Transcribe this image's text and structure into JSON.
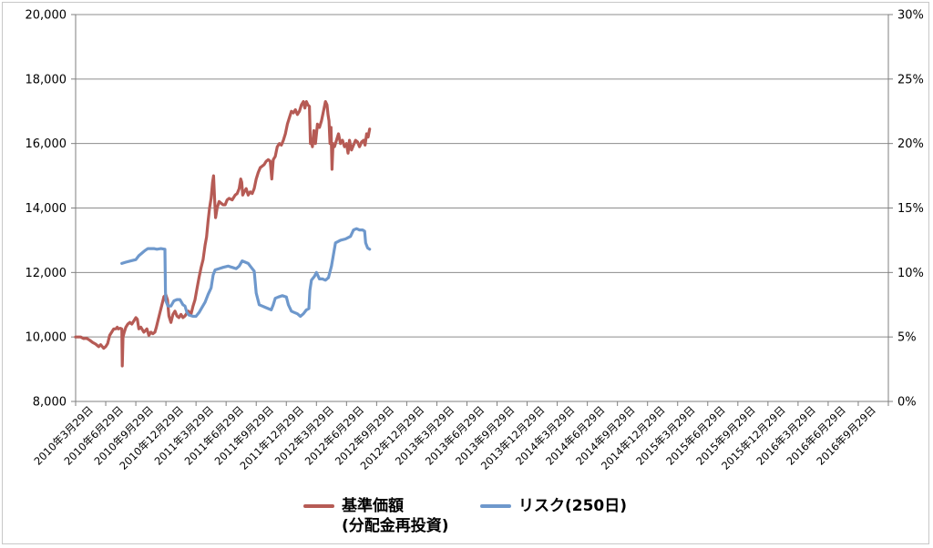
{
  "chart_data": {
    "type": "line",
    "title": "",
    "y_left": {
      "ticks": [
        "8,000",
        "10,000",
        "12,000",
        "14,000",
        "16,000",
        "18,000",
        "20,000"
      ],
      "range": [
        8000,
        20000
      ]
    },
    "y_right": {
      "ticks": [
        "0%",
        "5%",
        "10%",
        "15%",
        "20%",
        "25%",
        "30%"
      ],
      "range": [
        0,
        30
      ]
    },
    "categories": [
      "2010年3月29日",
      "2010年6月29日",
      "2010年9月29日",
      "2010年12月29日",
      "2011年3月29日",
      "2011年6月29日",
      "2011年9月29日",
      "2011年12月29日",
      "2012年3月29日",
      "2012年6月29日",
      "2012年9月29日",
      "2012年12月29日",
      "2013年3月29日",
      "2013年6月29日",
      "2013年9月29日",
      "2013年12月29日",
      "2014年3月29日",
      "2014年6月29日",
      "2014年9月29日",
      "2014年12月29日",
      "2015年3月29日",
      "2015年6月29日",
      "2015年9月29日",
      "2015年12月29日",
      "2016年3月29日",
      "2016年6月29日",
      "2016年9月29日"
    ],
    "grid": true,
    "legend_position": "bottom",
    "series": [
      {
        "name": "基準価額\n(分配金再投資)",
        "axis": "left",
        "color": "#b65b55",
        "points": [
          [
            0,
            10000
          ],
          [
            0.5,
            10000
          ],
          [
            0.8,
            9950
          ],
          [
            1.1,
            9960
          ],
          [
            1.4,
            9900
          ],
          [
            1.7,
            9830
          ],
          [
            2.0,
            9780
          ],
          [
            2.3,
            9700
          ],
          [
            2.5,
            9760
          ],
          [
            2.8,
            9650
          ],
          [
            3.0,
            9700
          ],
          [
            3.2,
            9800
          ],
          [
            3.4,
            10050
          ],
          [
            3.6,
            10150
          ],
          [
            3.8,
            10250
          ],
          [
            4.0,
            10250
          ],
          [
            4.15,
            10300
          ],
          [
            4.25,
            10250
          ],
          [
            4.45,
            10270
          ],
          [
            4.6,
            10250
          ],
          [
            4.65,
            9100
          ],
          [
            4.72,
            10000
          ],
          [
            4.85,
            10150
          ],
          [
            5.0,
            10300
          ],
          [
            5.2,
            10400
          ],
          [
            5.4,
            10450
          ],
          [
            5.6,
            10400
          ],
          [
            5.8,
            10500
          ],
          [
            6.0,
            10600
          ],
          [
            6.15,
            10550
          ],
          [
            6.3,
            10250
          ],
          [
            6.5,
            10300
          ],
          [
            6.8,
            10150
          ],
          [
            7.1,
            10250
          ],
          [
            7.3,
            10050
          ],
          [
            7.5,
            10150
          ],
          [
            7.7,
            10100
          ],
          [
            7.9,
            10150
          ],
          [
            8.05,
            10300
          ],
          [
            8.2,
            10500
          ],
          [
            8.4,
            10750
          ],
          [
            8.6,
            11000
          ],
          [
            8.8,
            11250
          ],
          [
            9.0,
            11300
          ],
          [
            9.15,
            11150
          ],
          [
            9.3,
            10650
          ],
          [
            9.5,
            10450
          ],
          [
            9.7,
            10700
          ],
          [
            9.9,
            10800
          ],
          [
            10.1,
            10650
          ],
          [
            10.3,
            10600
          ],
          [
            10.5,
            10700
          ],
          [
            10.7,
            10600
          ],
          [
            10.9,
            10650
          ],
          [
            11.1,
            10750
          ],
          [
            11.25,
            10800
          ],
          [
            11.35,
            10750
          ],
          [
            11.5,
            10700
          ],
          [
            11.7,
            10950
          ],
          [
            11.9,
            11150
          ],
          [
            12.1,
            11500
          ],
          [
            12.3,
            11850
          ],
          [
            12.5,
            12150
          ],
          [
            12.7,
            12400
          ],
          [
            12.9,
            12850
          ],
          [
            13.05,
            13100
          ],
          [
            13.2,
            13600
          ],
          [
            13.35,
            14000
          ],
          [
            13.5,
            14300
          ],
          [
            13.65,
            14800
          ],
          [
            13.75,
            15000
          ],
          [
            13.85,
            14300
          ],
          [
            13.95,
            13700
          ],
          [
            14.1,
            14000
          ],
          [
            14.3,
            14200
          ],
          [
            14.5,
            14150
          ],
          [
            14.7,
            14100
          ],
          [
            14.9,
            14100
          ],
          [
            15.1,
            14250
          ],
          [
            15.3,
            14300
          ],
          [
            15.6,
            14250
          ],
          [
            15.9,
            14400
          ],
          [
            16.1,
            14450
          ],
          [
            16.3,
            14600
          ],
          [
            16.45,
            14900
          ],
          [
            16.55,
            14800
          ],
          [
            16.65,
            14400
          ],
          [
            16.8,
            14500
          ],
          [
            17.0,
            14600
          ],
          [
            17.2,
            14400
          ],
          [
            17.4,
            14500
          ],
          [
            17.6,
            14450
          ],
          [
            17.8,
            14600
          ],
          [
            18.0,
            14900
          ],
          [
            18.2,
            15100
          ],
          [
            18.4,
            15250
          ],
          [
            18.6,
            15300
          ],
          [
            18.8,
            15350
          ],
          [
            19.0,
            15450
          ],
          [
            19.2,
            15500
          ],
          [
            19.4,
            15450
          ],
          [
            19.55,
            14900
          ],
          [
            19.7,
            15500
          ],
          [
            19.9,
            15600
          ],
          [
            20.1,
            15900
          ],
          [
            20.3,
            16000
          ],
          [
            20.5,
            15950
          ],
          [
            20.7,
            16100
          ],
          [
            20.9,
            16300
          ],
          [
            21.1,
            16600
          ],
          [
            21.3,
            16800
          ],
          [
            21.5,
            17000
          ],
          [
            21.7,
            16950
          ],
          [
            21.9,
            17050
          ],
          [
            22.1,
            16900
          ],
          [
            22.3,
            17000
          ],
          [
            22.5,
            17200
          ],
          [
            22.7,
            17300
          ],
          [
            22.85,
            17100
          ],
          [
            23.0,
            17300
          ],
          [
            23.15,
            17200
          ],
          [
            23.3,
            17150
          ],
          [
            23.4,
            16000
          ],
          [
            23.5,
            16100
          ],
          [
            23.6,
            15900
          ],
          [
            23.75,
            16400
          ],
          [
            23.9,
            16000
          ],
          [
            24.1,
            16600
          ],
          [
            24.3,
            16500
          ],
          [
            24.5,
            16700
          ],
          [
            24.7,
            17000
          ],
          [
            24.9,
            17300
          ],
          [
            25.05,
            17200
          ],
          [
            25.15,
            16900
          ],
          [
            25.25,
            16700
          ],
          [
            25.35,
            16000
          ],
          [
            25.45,
            16500
          ],
          [
            25.55,
            15200
          ],
          [
            25.65,
            16000
          ],
          [
            25.8,
            15900
          ],
          [
            26.0,
            16100
          ],
          [
            26.2,
            16300
          ],
          [
            26.4,
            16000
          ],
          [
            26.6,
            16100
          ],
          [
            26.8,
            15900
          ],
          [
            27.0,
            16000
          ],
          [
            27.15,
            15700
          ],
          [
            27.3,
            16100
          ],
          [
            27.5,
            15800
          ],
          [
            27.7,
            15950
          ],
          [
            27.9,
            16100
          ],
          [
            28.1,
            16050
          ],
          [
            28.3,
            15900
          ],
          [
            28.5,
            16050
          ],
          [
            28.7,
            16100
          ],
          [
            28.85,
            15950
          ],
          [
            29.0,
            16300
          ],
          [
            29.15,
            16200
          ],
          [
            29.3,
            16450
          ]
        ]
      },
      {
        "name": "リスク(250日)",
        "axis": "right",
        "color": "#6e98cc",
        "points": [
          [
            4.6,
            10.7
          ],
          [
            5.0,
            10.8
          ],
          [
            5.5,
            10.9
          ],
          [
            6.0,
            11.0
          ],
          [
            6.3,
            11.3
          ],
          [
            6.6,
            11.5
          ],
          [
            6.9,
            11.7
          ],
          [
            7.2,
            11.85
          ],
          [
            7.8,
            11.85
          ],
          [
            8.1,
            11.8
          ],
          [
            8.5,
            11.85
          ],
          [
            8.9,
            11.8
          ],
          [
            8.95,
            8.5
          ],
          [
            9.0,
            7.8
          ],
          [
            9.2,
            7.4
          ],
          [
            9.5,
            7.4
          ],
          [
            9.8,
            7.8
          ],
          [
            10.1,
            7.9
          ],
          [
            10.4,
            7.9
          ],
          [
            10.7,
            7.5
          ],
          [
            10.9,
            7.4
          ],
          [
            11.1,
            6.9
          ],
          [
            11.3,
            6.7
          ],
          [
            11.7,
            6.6
          ],
          [
            12.0,
            6.6
          ],
          [
            12.3,
            6.9
          ],
          [
            12.6,
            7.3
          ],
          [
            12.9,
            7.7
          ],
          [
            13.2,
            8.3
          ],
          [
            13.5,
            8.8
          ],
          [
            13.7,
            9.8
          ],
          [
            13.9,
            10.2
          ],
          [
            14.3,
            10.3
          ],
          [
            14.7,
            10.4
          ],
          [
            15.2,
            10.5
          ],
          [
            15.6,
            10.4
          ],
          [
            16.0,
            10.3
          ],
          [
            16.3,
            10.5
          ],
          [
            16.6,
            10.9
          ],
          [
            16.9,
            10.8
          ],
          [
            17.2,
            10.7
          ],
          [
            17.5,
            10.4
          ],
          [
            17.8,
            10.1
          ],
          [
            18.0,
            8.4
          ],
          [
            18.3,
            7.5
          ],
          [
            18.6,
            7.4
          ],
          [
            18.9,
            7.3
          ],
          [
            19.2,
            7.2
          ],
          [
            19.5,
            7.1
          ],
          [
            19.7,
            7.5
          ],
          [
            19.9,
            8.0
          ],
          [
            20.2,
            8.1
          ],
          [
            20.6,
            8.2
          ],
          [
            21.0,
            8.1
          ],
          [
            21.2,
            7.5
          ],
          [
            21.5,
            7.0
          ],
          [
            21.8,
            6.9
          ],
          [
            22.1,
            6.8
          ],
          [
            22.4,
            6.6
          ],
          [
            22.7,
            6.8
          ],
          [
            23.0,
            7.1
          ],
          [
            23.25,
            7.2
          ],
          [
            23.35,
            8.6
          ],
          [
            23.5,
            9.4
          ],
          [
            23.8,
            9.7
          ],
          [
            24.0,
            10.0
          ],
          [
            24.3,
            9.5
          ],
          [
            24.6,
            9.5
          ],
          [
            24.9,
            9.4
          ],
          [
            25.2,
            9.6
          ],
          [
            25.5,
            10.5
          ],
          [
            25.7,
            11.4
          ],
          [
            25.9,
            12.3
          ],
          [
            26.4,
            12.5
          ],
          [
            26.9,
            12.6
          ],
          [
            27.4,
            12.8
          ],
          [
            27.7,
            13.3
          ],
          [
            28.0,
            13.4
          ],
          [
            28.3,
            13.3
          ],
          [
            28.6,
            13.3
          ],
          [
            28.8,
            13.2
          ],
          [
            28.9,
            12.3
          ],
          [
            29.1,
            11.9
          ],
          [
            29.3,
            11.8
          ]
        ]
      }
    ]
  }
}
